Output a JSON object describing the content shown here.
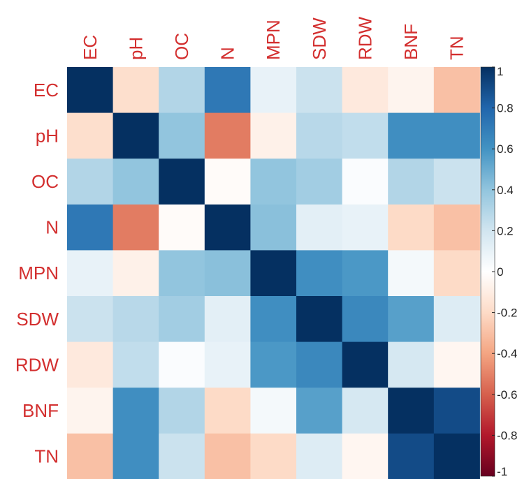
{
  "chart_data": {
    "type": "heatmap",
    "title": "",
    "variables": [
      "EC",
      "pH",
      "OC",
      "N",
      "MPN",
      "SDW",
      "RDW",
      "BNF",
      "TN"
    ],
    "matrix": [
      [
        1.0,
        -0.18,
        0.3,
        0.72,
        0.1,
        0.22,
        -0.12,
        -0.06,
        -0.3
      ],
      [
        -0.18,
        1.0,
        0.4,
        -0.52,
        -0.08,
        0.28,
        0.25,
        0.62,
        0.62
      ],
      [
        0.3,
        0.4,
        1.0,
        -0.02,
        0.4,
        0.35,
        0.02,
        0.3,
        0.22
      ],
      [
        0.72,
        -0.52,
        -0.02,
        1.0,
        0.42,
        0.12,
        0.1,
        -0.2,
        -0.3
      ],
      [
        0.1,
        -0.08,
        0.4,
        0.42,
        1.0,
        0.62,
        0.58,
        0.05,
        -0.2
      ],
      [
        0.22,
        0.28,
        0.35,
        0.12,
        0.62,
        1.0,
        0.65,
        0.55,
        0.15
      ],
      [
        -0.12,
        0.25,
        0.02,
        0.1,
        0.58,
        0.65,
        1.0,
        0.18,
        -0.05
      ],
      [
        -0.06,
        0.62,
        0.3,
        -0.2,
        0.05,
        0.55,
        0.18,
        1.0,
        0.9
      ],
      [
        -0.3,
        0.62,
        0.22,
        -0.3,
        -0.2,
        0.15,
        -0.05,
        0.9,
        1.0
      ]
    ],
    "colorbar": {
      "range": [
        -1,
        1
      ],
      "ticks": [
        "1",
        "0.8",
        "0.6",
        "0.4",
        "0.2",
        "0",
        "-0.2",
        "-0.4",
        "-0.6",
        "-0.8",
        "-1"
      ],
      "tick_values": [
        1,
        0.8,
        0.6,
        0.4,
        0.2,
        0,
        -0.2,
        -0.4,
        -0.6,
        -0.8,
        -1
      ]
    },
    "colors": {
      "label": "#d32f2f",
      "scale": [
        "#67001f",
        "#b2182b",
        "#d6604d",
        "#f4a582",
        "#fddbc7",
        "#ffffff",
        "#d1e5f0",
        "#92c5de",
        "#4393c3",
        "#2166ac",
        "#053061"
      ]
    }
  }
}
